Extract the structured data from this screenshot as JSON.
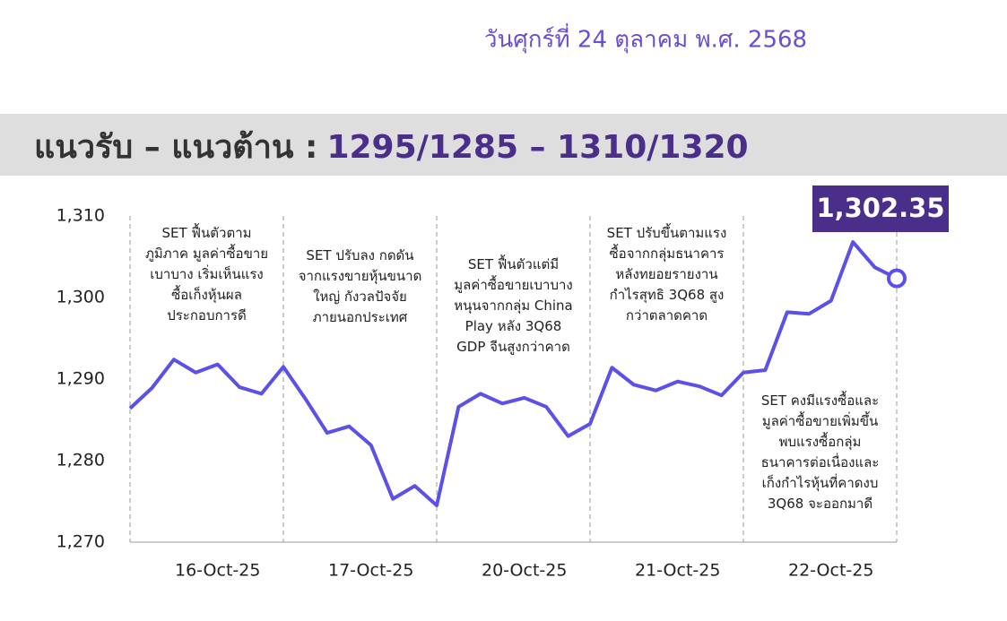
{
  "date": "วันศุกร์ที่ 24 ตุลาคม พ.ศ. 2568",
  "banner": {
    "label": "แนวรับ – แนวต้าน :",
    "levels": "1295/1285 – 1310/1320"
  },
  "chart_data": {
    "type": "line",
    "color": "#5b50e8",
    "categories": [
      null,
      null,
      null,
      null,
      "16-Oct-25",
      null,
      null,
      null,
      null,
      null,
      null,
      "17-Oct-25",
      null,
      null,
      null,
      null,
      null,
      null,
      "20-Oct-25",
      null,
      null,
      null,
      null,
      null,
      null,
      "21-Oct-25",
      null,
      null,
      null,
      null,
      null,
      null,
      "22-Oct-25",
      null,
      null,
      null
    ],
    "values": [
      1286.4,
      1288.9,
      1292.4,
      1290.8,
      1291.8,
      1289.0,
      1288.2,
      1291.5,
      1287.6,
      1283.4,
      1284.2,
      1281.9,
      1275.3,
      1276.9,
      1274.5,
      1286.6,
      1288.2,
      1287.0,
      1287.7,
      1286.6,
      1283.0,
      1284.5,
      1291.4,
      1289.3,
      1288.6,
      1289.7,
      1289.1,
      1288.0,
      1290.8,
      1291.1,
      1298.2,
      1298.0,
      1299.6,
      1306.8,
      1303.7,
      1302.35
    ],
    "value_labels": [
      null,
      null,
      null,
      null,
      null,
      null,
      null,
      null,
      null,
      null,
      null,
      null,
      null,
      null,
      null,
      null,
      null,
      null,
      null,
      null,
      null,
      null,
      null,
      null,
      null,
      null,
      null,
      null,
      null,
      null,
      null,
      null,
      null,
      null,
      null,
      "1,302.35"
    ],
    "ylim": [
      1270,
      1310
    ],
    "yticks": [
      {
        "value": 1270,
        "label": "1,270"
      },
      {
        "value": 1280,
        "label": "1,280"
      },
      {
        "value": 1290,
        "label": "1,290"
      },
      {
        "value": 1300,
        "label": "1,300"
      },
      {
        "value": 1310,
        "label": "1,310"
      }
    ],
    "annotations": [
      [
        "SET ฟื้นตัวตาม",
        "ภูมิภาค มูลค่าซื้อขาย",
        "เบาบาง เริ่มเห็นแรง",
        "ซื้อเก็งหุ้นผล",
        "ประกอบการดี"
      ],
      [
        "SET ปรับลง กดดัน",
        "จากแรงขายหุ้นขนาด",
        "ใหญ่ กังวลปัจจัย",
        "ภายนอกประเทศ"
      ],
      [
        "SET ฟื้นตัวแต่มี",
        "มูลค่าซื้อขายเบาบาง",
        "หนุนจากกลุ่ม China",
        "Play หลัง 3Q68",
        "GDP จีนสูงกว่าคาด"
      ],
      [
        "SET ปรับขึ้นตามแรง",
        "ซื้อจากกลุ่มธนาคาร",
        "หลังทยอยรายงาน",
        "กำไรสุทธิ 3Q68 สูง",
        "กว่าตลาดคาด"
      ],
      [
        "SET คงมีแรงซื้อและ",
        "มูลค่าซื้อขายเพิ่มขึ้น",
        "พบแรงซื้อกลุ่ม",
        "ธนาคารต่อเนื่องและ",
        "เก็งกำไรหุ้นที่คาดงบ",
        "3Q68 จะออกมาดี"
      ]
    ]
  }
}
